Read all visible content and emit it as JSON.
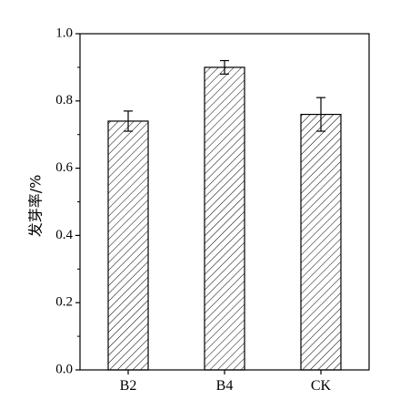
{
  "chart_data": {
    "type": "bar",
    "title": "",
    "xlabel": "",
    "ylabel": "发芽率/%",
    "categories": [
      "B2",
      "B4",
      "CK"
    ],
    "values": [
      0.74,
      0.9,
      0.76
    ],
    "errors": [
      0.03,
      0.02,
      0.05
    ],
    "ylim": [
      0.0,
      1.0
    ],
    "yticks": [
      "0.0",
      "0.2",
      "0.4",
      "0.6",
      "0.8",
      "1.0"
    ],
    "grid": false,
    "bar_fill": "hatched",
    "colors": {
      "axis": "#000000",
      "bar_stroke": "#000000",
      "hatch": "#000000",
      "background": "#ffffff"
    }
  }
}
